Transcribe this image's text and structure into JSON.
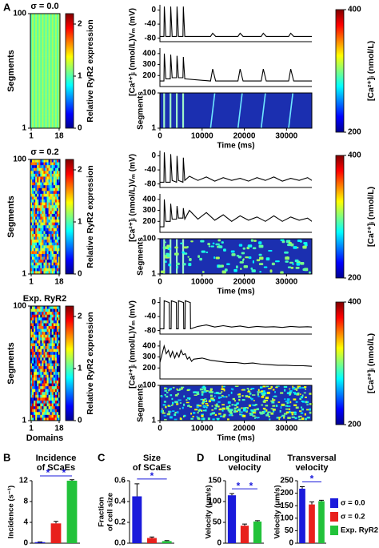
{
  "panel_labels": [
    "A",
    "B",
    "C",
    "D"
  ],
  "legend": {
    "names": [
      "σ = 0.0",
      "σ = 0.2",
      "Exp. RyR2"
    ],
    "colors": [
      "#1a1adb",
      "#e8201c",
      "#22c23a"
    ]
  },
  "chart_data": [
    {
      "type": "heatmap",
      "title": "σ = 0.0",
      "ylabel": "Segments",
      "ylim": [
        1,
        100
      ],
      "yticks": [
        1,
        100
      ],
      "xlim": [
        1,
        18
      ],
      "xticks": [
        1,
        18
      ],
      "colorbar": {
        "label": "Relative RyR2 expression",
        "lim": [
          0,
          2.2
        ],
        "ticks": [
          0,
          1,
          2
        ]
      }
    },
    {
      "type": "line",
      "ylabel": "Vₘ (mV)",
      "xlim": [
        0,
        36000
      ],
      "ylim": [
        -90,
        15
      ],
      "yticks": [
        -80,
        -40,
        0
      ],
      "x": [
        0,
        950,
        1050,
        1400,
        2450,
        2550,
        2900,
        3950,
        4050,
        4400,
        5450,
        5550,
        5900,
        12000,
        12500,
        13200,
        18500,
        19000,
        19700,
        24000,
        24500,
        25200,
        30500,
        31000,
        31700,
        36000
      ],
      "values": [
        -75,
        -75,
        10,
        -75,
        -75,
        10,
        -75,
        -75,
        10,
        -75,
        -75,
        10,
        -75,
        -75,
        -66,
        -75,
        -75,
        -66,
        -75,
        -75,
        -66,
        -75,
        -75,
        -66,
        -75,
        -75
      ]
    },
    {
      "type": "line",
      "ylabel": "[Ca²⁺]ᵢ (nmol/L)",
      "xlim": [
        0,
        36000
      ],
      "ylim": [
        100,
        450
      ],
      "yticks": [
        200,
        300,
        400
      ],
      "x": [
        0,
        950,
        1050,
        1400,
        2450,
        2550,
        2900,
        3950,
        4050,
        4400,
        5450,
        5550,
        5900,
        12000,
        12500,
        13200,
        18500,
        19000,
        19700,
        24000,
        24500,
        25200,
        30500,
        31000,
        31700,
        36000
      ],
      "values": [
        150,
        150,
        400,
        170,
        170,
        390,
        180,
        180,
        380,
        180,
        180,
        370,
        170,
        150,
        260,
        150,
        150,
        260,
        150,
        150,
        260,
        150,
        150,
        260,
        150,
        150
      ]
    },
    {
      "type": "heatmap",
      "ylabel": "Segments",
      "ylim": [
        1,
        100
      ],
      "yticks": [
        1,
        100
      ],
      "xlim": [
        0,
        36000
      ],
      "xticks": [
        0,
        10000,
        20000,
        30000
      ],
      "xlabel": "Time (ms)",
      "colorbar": {
        "label": "[Ca²⁺]ᵢ (nmol/L)",
        "lim": [
          200,
          400
        ],
        "ticks": [
          200,
          400
        ]
      }
    },
    {
      "type": "heatmap",
      "title": "σ = 0.2",
      "ylabel": "Segments",
      "ylim": [
        1,
        100
      ],
      "yticks": [
        1,
        100
      ],
      "xlim": [
        1,
        18
      ],
      "xticks": [
        1,
        18
      ],
      "colorbar": {
        "label": "Relative RyR2 expression",
        "lim": [
          0,
          2.2
        ],
        "ticks": [
          0,
          1,
          2
        ]
      }
    },
    {
      "type": "line",
      "ylabel": "Vₘ (mV)",
      "xlim": [
        0,
        36000
      ],
      "ylim": [
        -90,
        15
      ],
      "yticks": [
        -80,
        -40,
        0
      ],
      "x": [
        0,
        950,
        1050,
        1400,
        2450,
        2550,
        2900,
        3950,
        4050,
        4400,
        5450,
        5550,
        5900,
        7000,
        9000,
        11000,
        13000,
        15000,
        17000,
        19000,
        21000,
        23000,
        25000,
        27000,
        29000,
        31000,
        33000,
        35000,
        36000
      ],
      "values": [
        -75,
        -75,
        10,
        -75,
        -75,
        5,
        -70,
        -75,
        0,
        -70,
        -75,
        -5,
        -70,
        -58,
        -70,
        -60,
        -72,
        -62,
        -70,
        -64,
        -72,
        -62,
        -70,
        -60,
        -72,
        -64,
        -70,
        -62,
        -70
      ]
    },
    {
      "type": "line",
      "ylabel": "[Ca²⁺]ᵢ (nmol/L)",
      "xlim": [
        0,
        36000
      ],
      "ylim": [
        100,
        450
      ],
      "yticks": [
        200,
        300,
        400
      ],
      "x": [
        0,
        950,
        1050,
        1400,
        2450,
        2550,
        2900,
        3950,
        4050,
        4400,
        5450,
        5550,
        5900,
        7000,
        9000,
        11000,
        13000,
        15000,
        17000,
        19000,
        21000,
        23000,
        25000,
        27000,
        29000,
        31000,
        33000,
        35000,
        36000
      ],
      "values": [
        150,
        150,
        400,
        200,
        200,
        360,
        220,
        220,
        340,
        230,
        230,
        320,
        220,
        300,
        220,
        280,
        210,
        260,
        200,
        250,
        210,
        240,
        200,
        250,
        200,
        240,
        210,
        230,
        200
      ]
    },
    {
      "type": "heatmap",
      "ylabel": "Segments",
      "ylim": [
        1,
        100
      ],
      "yticks": [
        1,
        100
      ],
      "xlim": [
        0,
        36000
      ],
      "xticks": [
        0,
        10000,
        20000,
        30000
      ],
      "xlabel": "Time (ms)",
      "colorbar": {
        "label": "[Ca²⁺]ᵢ (nmol/L)",
        "lim": [
          200,
          400
        ],
        "ticks": [
          200,
          400
        ]
      }
    },
    {
      "type": "heatmap",
      "title": "Exp. RyR2",
      "ylabel": "Segments",
      "xlabel": "Domains",
      "ylim": [
        1,
        100
      ],
      "yticks": [
        1,
        100
      ],
      "xlim": [
        1,
        18
      ],
      "xticks": [
        1,
        18
      ],
      "colorbar": {
        "label": "Relative RyR2 expression",
        "lim": [
          0,
          2.2
        ],
        "ticks": [
          0,
          1,
          2
        ]
      }
    },
    {
      "type": "line",
      "ylabel": "Vₘ (mV)",
      "xlim": [
        0,
        36000
      ],
      "ylim": [
        -90,
        15
      ],
      "yticks": [
        -80,
        -40,
        0
      ],
      "x": [
        0,
        950,
        1000,
        2200,
        2250,
        2650,
        2700,
        3900,
        3950,
        4350,
        4400,
        5600,
        5650,
        5950,
        6000,
        7200,
        7250,
        9000,
        11000,
        13000,
        15000,
        17000,
        19000,
        21000,
        23000,
        25000,
        27000,
        29000,
        31000,
        33000,
        35000,
        36000
      ],
      "values": [
        -75,
        -75,
        5,
        0,
        -75,
        -75,
        5,
        0,
        -75,
        -75,
        5,
        0,
        -75,
        -75,
        5,
        0,
        -75,
        -68,
        -64,
        -70,
        -66,
        -70,
        -67,
        -71,
        -68,
        -70,
        -69,
        -71,
        -68,
        -70,
        -69,
        -70
      ]
    },
    {
      "type": "line",
      "ylabel": "[Ca²⁺]ᵢ (nmol/L)",
      "xlim": [
        0,
        36000
      ],
      "ylim": [
        100,
        450
      ],
      "yticks": [
        200,
        300,
        400
      ],
      "x": [
        0,
        1000,
        1500,
        2000,
        2500,
        3000,
        3500,
        4000,
        4500,
        5000,
        5500,
        6000,
        6500,
        7000,
        7500,
        8000,
        10000,
        12000,
        14000,
        16000,
        18000,
        20000,
        22000,
        24000,
        26000,
        28000,
        30000,
        32000,
        34000,
        36000
      ],
      "values": [
        250,
        400,
        330,
        360,
        300,
        350,
        290,
        340,
        300,
        360,
        320,
        330,
        280,
        300,
        260,
        280,
        290,
        270,
        260,
        250,
        250,
        240,
        245,
        235,
        230,
        225,
        225,
        220,
        220,
        215
      ]
    },
    {
      "type": "heatmap",
      "ylabel": "Segments",
      "ylim": [
        1,
        100
      ],
      "yticks": [
        1,
        100
      ],
      "xlim": [
        0,
        36000
      ],
      "xticks": [
        0,
        10000,
        20000,
        30000
      ],
      "xlabel": "Time (ms)",
      "colorbar": {
        "label": "[Ca²⁺]ᵢ (nmol/L)",
        "lim": [
          200,
          400
        ],
        "ticks": [
          200,
          400
        ]
      }
    },
    {
      "type": "bar",
      "title": [
        "Incidence",
        "of SCaEs"
      ],
      "ylabel": [
        "Incidence (s⁻¹)"
      ],
      "values": [
        0.2,
        3.8,
        12
      ],
      "errors": [
        0.05,
        0.4,
        0.2
      ],
      "colors": [
        "#1a1adb",
        "#e8201c",
        "#22c23a"
      ],
      "ylim": [
        0,
        12
      ],
      "yticks": [
        0,
        4,
        8,
        12
      ],
      "annotations": [
        "*",
        "*"
      ]
    },
    {
      "type": "bar",
      "title": [
        "Size",
        "of SCaEs"
      ],
      "ylabel": [
        "Fraction",
        "of cell size"
      ],
      "values": [
        0.45,
        0.05,
        0.02
      ],
      "errors": [
        0.12,
        0.01,
        0.005
      ],
      "colors": [
        "#1a1adb",
        "#e8201c",
        "#22c23a"
      ],
      "ylim": [
        0,
        0.6
      ],
      "yticks": [
        {
          "value": 0,
          "label": "0.0"
        },
        0.2,
        0.4,
        0.6
      ],
      "annotations": [
        "*"
      ]
    },
    {
      "type": "bar",
      "title": [
        "Longitudinal",
        "velocity"
      ],
      "ylabel": [
        "Velocity (μm/s)"
      ],
      "values": [
        115,
        42,
        52
      ],
      "errors": [
        4,
        4,
        2
      ],
      "colors": [
        "#1a1adb",
        "#e8201c",
        "#22c23a"
      ],
      "ylim": [
        0,
        150
      ],
      "yticks": [
        0,
        50,
        100,
        150
      ],
      "annotations": [
        "*",
        "*"
      ]
    },
    {
      "type": "bar",
      "title": [
        "Transversal",
        "velocity"
      ],
      "ylabel": [
        "Velocity (μm/s)"
      ],
      "values": [
        218,
        155,
        168
      ],
      "errors": [
        8,
        10,
        4
      ],
      "colors": [
        "#1a1adb",
        "#e8201c",
        "#22c23a"
      ],
      "ylim": [
        0,
        250
      ],
      "yticks": [
        0,
        50,
        100,
        150,
        200,
        250
      ],
      "annotations": [
        "*"
      ]
    }
  ]
}
